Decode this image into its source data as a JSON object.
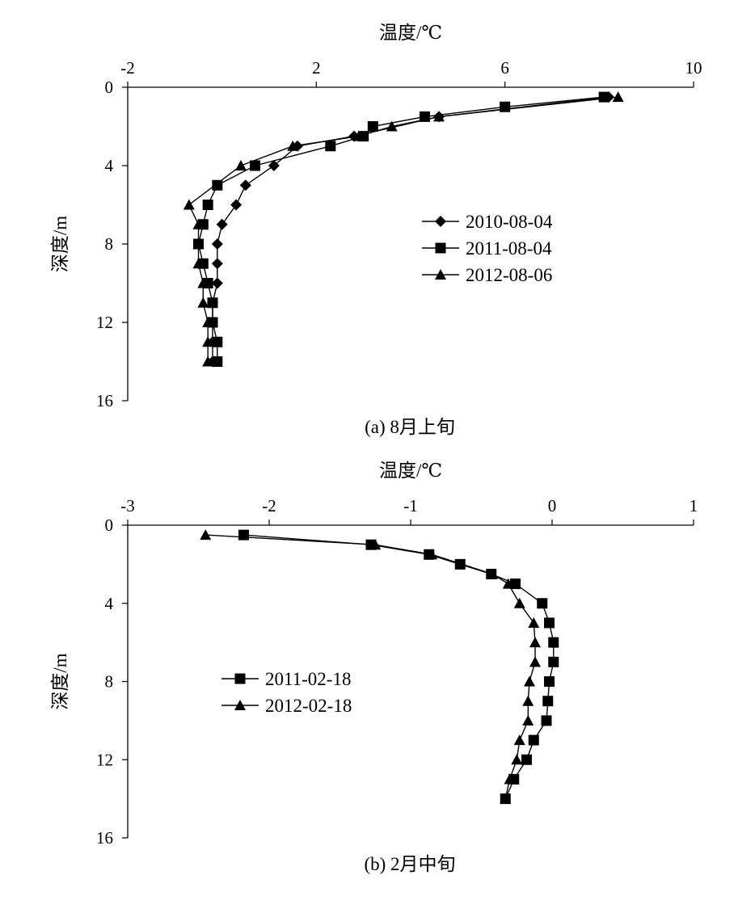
{
  "chart_data": [
    {
      "type": "line",
      "caption": "(a)   8月上旬",
      "xlabel": "温度/℃",
      "ylabel": "深度/m",
      "xlim": [
        -2,
        10
      ],
      "ylim": [
        0,
        16
      ],
      "x_ticks": [
        "-2",
        "2",
        "6",
        "10"
      ],
      "y_ticks": [
        "0",
        "4",
        "8",
        "12",
        "16"
      ],
      "x_axis_position": "top",
      "y_inverted": true,
      "grid": false,
      "legend_position": "center-right",
      "series": [
        {
          "name": "2010-08-04",
          "marker": "diamond",
          "points": [
            [
              8.2,
              0.5
            ],
            [
              4.6,
              1.5
            ],
            [
              2.8,
              2.5
            ],
            [
              1.6,
              3
            ],
            [
              1.1,
              4
            ],
            [
              0.5,
              5
            ],
            [
              0.3,
              6
            ],
            [
              0.0,
              7
            ],
            [
              -0.1,
              8
            ],
            [
              -0.1,
              9
            ],
            [
              -0.1,
              10
            ],
            [
              -0.2,
              11
            ],
            [
              -0.2,
              12
            ],
            [
              -0.2,
              13
            ],
            [
              -0.2,
              14
            ]
          ]
        },
        {
          "name": "2011-08-04",
          "marker": "square",
          "points": [
            [
              8.1,
              0.5
            ],
            [
              6.0,
              1
            ],
            [
              4.3,
              1.5
            ],
            [
              3.2,
              2
            ],
            [
              3.0,
              2.5
            ],
            [
              2.3,
              3
            ],
            [
              0.7,
              4
            ],
            [
              -0.1,
              5
            ],
            [
              -0.3,
              6
            ],
            [
              -0.4,
              7
            ],
            [
              -0.5,
              8
            ],
            [
              -0.4,
              9
            ],
            [
              -0.3,
              10
            ],
            [
              -0.2,
              11
            ],
            [
              -0.2,
              12
            ],
            [
              -0.1,
              13
            ],
            [
              -0.1,
              14
            ]
          ]
        },
        {
          "name": "2012-08-06",
          "marker": "triangle",
          "points": [
            [
              8.4,
              0.5
            ],
            [
              4.6,
              1.5
            ],
            [
              3.6,
              2
            ],
            [
              2.9,
              2.5
            ],
            [
              1.5,
              3
            ],
            [
              0.4,
              4
            ],
            [
              -0.7,
              6
            ],
            [
              -0.5,
              7
            ],
            [
              -0.5,
              8
            ],
            [
              -0.5,
              9
            ],
            [
              -0.4,
              10
            ],
            [
              -0.4,
              11
            ],
            [
              -0.3,
              12
            ],
            [
              -0.3,
              13
            ],
            [
              -0.3,
              14
            ]
          ]
        }
      ]
    },
    {
      "type": "line",
      "caption": "(b)   2月中旬",
      "xlabel": "温度/℃",
      "ylabel": "深度/m",
      "xlim": [
        -3,
        1
      ],
      "ylim": [
        0,
        16
      ],
      "x_ticks": [
        "-3",
        "-2",
        "-1",
        "0",
        "1"
      ],
      "y_ticks": [
        "0",
        "4",
        "8",
        "12",
        "16"
      ],
      "x_axis_position": "top",
      "y_inverted": true,
      "grid": false,
      "legend_position": "center-left",
      "series": [
        {
          "name": "2011-02-18",
          "marker": "square",
          "points": [
            [
              -2.18,
              0.5
            ],
            [
              -1.28,
              1
            ],
            [
              -0.87,
              1.5
            ],
            [
              -0.65,
              2
            ],
            [
              -0.43,
              2.5
            ],
            [
              -0.26,
              3
            ],
            [
              -0.07,
              4
            ],
            [
              -0.02,
              5
            ],
            [
              0.01,
              6
            ],
            [
              0.01,
              7
            ],
            [
              -0.02,
              8
            ],
            [
              -0.03,
              9
            ],
            [
              -0.04,
              10
            ],
            [
              -0.13,
              11
            ],
            [
              -0.18,
              12
            ],
            [
              -0.27,
              13
            ],
            [
              -0.33,
              14
            ]
          ]
        },
        {
          "name": "2012-02-18",
          "marker": "triangle",
          "points": [
            [
              -2.45,
              0.5
            ],
            [
              -1.25,
              1
            ],
            [
              -0.85,
              1.5
            ],
            [
              -0.42,
              2.5
            ],
            [
              -0.31,
              3
            ],
            [
              -0.23,
              4
            ],
            [
              -0.13,
              5
            ],
            [
              -0.12,
              6
            ],
            [
              -0.12,
              7
            ],
            [
              -0.16,
              8
            ],
            [
              -0.17,
              9
            ],
            [
              -0.17,
              10
            ],
            [
              -0.23,
              11
            ],
            [
              -0.25,
              12
            ],
            [
              -0.3,
              13
            ],
            [
              -0.33,
              14
            ]
          ]
        }
      ]
    }
  ]
}
